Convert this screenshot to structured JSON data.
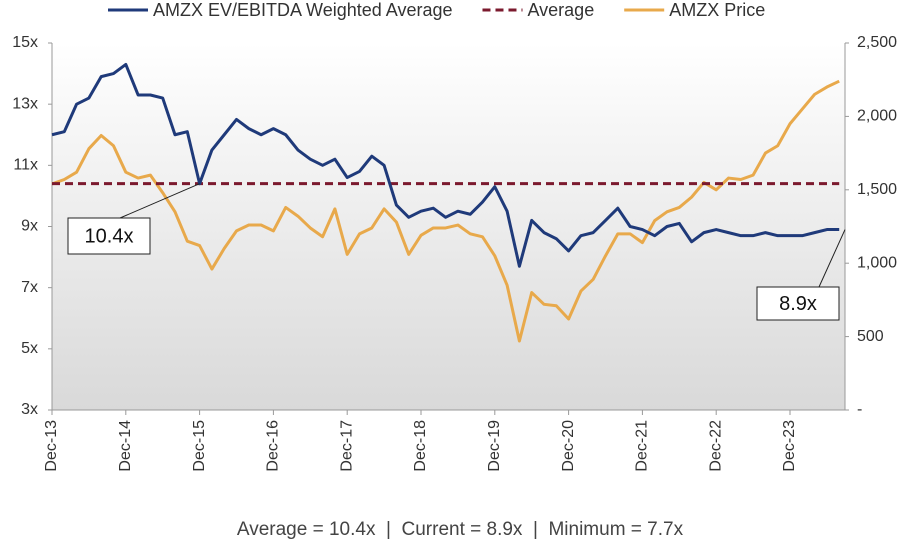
{
  "chart_data": {
    "type": "line",
    "categories": [
      "Dec-13",
      null,
      null,
      null,
      null,
      null,
      "Dec-14",
      null,
      null,
      null,
      null,
      null,
      "Dec-15",
      null,
      null,
      null,
      null,
      null,
      "Dec-16",
      null,
      null,
      null,
      null,
      null,
      "Dec-17",
      null,
      null,
      null,
      null,
      null,
      "Dec-18",
      null,
      null,
      null,
      null,
      null,
      "Dec-19",
      null,
      null,
      null,
      null,
      null,
      "Dec-20",
      null,
      null,
      null,
      null,
      null,
      "Dec-21",
      null,
      null,
      null,
      null,
      null,
      "Dec-22",
      null,
      null,
      null,
      null,
      null,
      "Dec-23",
      null,
      null,
      null,
      null
    ],
    "series": [
      {
        "name": "AMZX EV/EBITDA Weighted Average",
        "color": "#1f3a7a",
        "style": "solid",
        "values": [
          12.0,
          12.1,
          13.0,
          13.2,
          13.9,
          14.0,
          14.3,
          13.3,
          13.3,
          13.2,
          12.0,
          12.1,
          10.4,
          11.5,
          12.0,
          12.5,
          12.2,
          12.0,
          12.2,
          12.0,
          11.5,
          11.2,
          11.0,
          11.2,
          10.6,
          10.8,
          11.3,
          11.0,
          9.7,
          9.3,
          9.5,
          9.6,
          9.3,
          9.5,
          9.4,
          9.8,
          10.3,
          9.5,
          7.7,
          9.2,
          8.8,
          8.6,
          8.2,
          8.7,
          8.8,
          9.2,
          9.6,
          9.0,
          8.9,
          8.7,
          9.0,
          9.1,
          8.5,
          8.8,
          8.9,
          8.8,
          8.7,
          8.7,
          8.8,
          8.7,
          8.7,
          8.7,
          8.8,
          8.9,
          8.9
        ]
      },
      {
        "name": "Average",
        "color": "#7b1a2e",
        "style": "dashed",
        "values": [
          10.4,
          10.4,
          10.4,
          10.4,
          10.4,
          10.4,
          10.4,
          10.4,
          10.4,
          10.4,
          10.4,
          10.4,
          10.4,
          10.4,
          10.4,
          10.4,
          10.4,
          10.4,
          10.4,
          10.4,
          10.4,
          10.4,
          10.4,
          10.4,
          10.4,
          10.4,
          10.4,
          10.4,
          10.4,
          10.4,
          10.4,
          10.4,
          10.4,
          10.4,
          10.4,
          10.4,
          10.4,
          10.4,
          10.4,
          10.4,
          10.4,
          10.4,
          10.4,
          10.4,
          10.4,
          10.4,
          10.4,
          10.4,
          10.4,
          10.4,
          10.4,
          10.4,
          10.4,
          10.4,
          10.4,
          10.4,
          10.4,
          10.4,
          10.4,
          10.4,
          10.4,
          10.4,
          10.4,
          10.4,
          10.4
        ]
      },
      {
        "name": "AMZX Price",
        "color": "#e8a94b",
        "style": "solid",
        "axis": "y2",
        "values": [
          1540,
          1570,
          1620,
          1780,
          1870,
          1800,
          1620,
          1580,
          1600,
          1480,
          1350,
          1150,
          1120,
          960,
          1100,
          1220,
          1260,
          1260,
          1220,
          1380,
          1320,
          1240,
          1180,
          1370,
          1060,
          1200,
          1240,
          1370,
          1280,
          1060,
          1190,
          1240,
          1240,
          1260,
          1200,
          1180,
          1050,
          850,
          470,
          800,
          720,
          710,
          620,
          810,
          890,
          1050,
          1200,
          1200,
          1140,
          1290,
          1350,
          1380,
          1450,
          1550,
          1500,
          1580,
          1570,
          1600,
          1750,
          1800,
          1950,
          2050,
          2150,
          2200,
          2240
        ]
      }
    ],
    "ylim": [
      3,
      15
    ],
    "yticks": [
      {
        "value": 3,
        "label": "3x"
      },
      {
        "value": 5,
        "label": "5x"
      },
      {
        "value": 7,
        "label": "7x"
      },
      {
        "value": 9,
        "label": "9x"
      },
      {
        "value": 11,
        "label": "11x"
      },
      {
        "value": 13,
        "label": "13x"
      },
      {
        "value": 15,
        "label": "15x"
      }
    ],
    "y2lim": [
      0,
      2500
    ],
    "y2ticks": [
      {
        "value": 0,
        "label": "-"
      },
      500,
      {
        "value": 1000,
        "label": "1,000"
      },
      {
        "value": 1500,
        "label": "1,500"
      },
      {
        "value": 2000,
        "label": "2,000"
      },
      {
        "value": 2500,
        "label": "2,500"
      }
    ],
    "legend": "top",
    "annotations": [
      {
        "text": "10.4x",
        "series": 1,
        "index": 12
      },
      {
        "text": "8.9x",
        "series": 0,
        "index": 64
      }
    ],
    "footer": "Average = 10.4x  |  Current = 8.9x  |  Minimum = 7.7x"
  }
}
